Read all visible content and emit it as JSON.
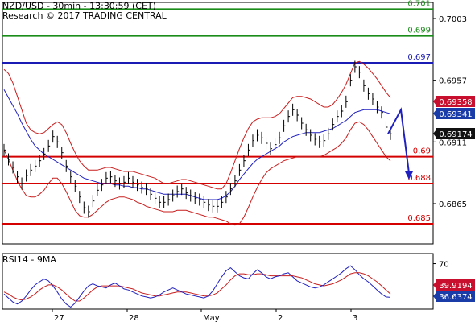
{
  "header": {
    "title": "NZD/USD - 30min - 13:30:59 (CET)",
    "credit": "Research © 2017 TRADING CENTRAL"
  },
  "colors": {
    "resistance": "#1a8c1a",
    "pivot": "#1a1ab4",
    "support": "#d40000",
    "ma_blue": "#2020c0",
    "band_red": "#c81e1e",
    "price_tag_red": "#c8102e",
    "price_tag_blue": "#1a3ca8",
    "price_tag_dark": "#111111"
  },
  "chart_data": [
    {
      "type": "line",
      "title": "NZD/USD - 30min",
      "ylim": [
        0.6835,
        0.7015
      ],
      "y_ticks": [
        "0.7003",
        "0.6957",
        "0.6911",
        "0.6865"
      ],
      "x_ticks": [
        "27",
        "28",
        "May",
        "2",
        "3"
      ],
      "levels": [
        {
          "label": "0.701",
          "value": 0.701,
          "kind": "resistance"
        },
        {
          "label": "0.699",
          "value": 0.699,
          "kind": "resistance"
        },
        {
          "label": "0.697",
          "value": 0.697,
          "kind": "pivot"
        },
        {
          "label": "0.69",
          "value": 0.69,
          "kind": "support"
        },
        {
          "label": "0.688",
          "value": 0.688,
          "kind": "support"
        },
        {
          "label": "0.685",
          "value": 0.685,
          "kind": "support"
        }
      ],
      "price_tags": [
        {
          "label": "0.69358",
          "value": 0.69358,
          "style": "red"
        },
        {
          "label": "0.69341",
          "value": 0.69341,
          "style": "blue"
        },
        {
          "label": "0.69174",
          "value": 0.69174,
          "style": "dark"
        }
      ],
      "price_series": [
        0.6905,
        0.6898,
        0.6892,
        0.6885,
        0.688,
        0.6886,
        0.689,
        0.6893,
        0.6897,
        0.6902,
        0.6908,
        0.6915,
        0.6911,
        0.6903,
        0.6893,
        0.6885,
        0.6878,
        0.687,
        0.6862,
        0.6859,
        0.6867,
        0.6875,
        0.6879,
        0.6884,
        0.6885,
        0.6882,
        0.688,
        0.6881,
        0.6884,
        0.6881,
        0.6879,
        0.6877,
        0.6876,
        0.6872,
        0.6869,
        0.6866,
        0.6866,
        0.6868,
        0.6871,
        0.6874,
        0.6876,
        0.6873,
        0.6871,
        0.6869,
        0.6868,
        0.6866,
        0.6864,
        0.6863,
        0.6863,
        0.6866,
        0.687,
        0.6876,
        0.6882,
        0.689,
        0.6897,
        0.6905,
        0.6912,
        0.6916,
        0.6914,
        0.691,
        0.6906,
        0.6909,
        0.6914,
        0.6923,
        0.693,
        0.6935,
        0.6931,
        0.6925,
        0.692,
        0.6916,
        0.6913,
        0.6911,
        0.6912,
        0.6917,
        0.6924,
        0.693,
        0.6934,
        0.6941,
        0.6957,
        0.6967,
        0.6963,
        0.6953,
        0.6947,
        0.6943,
        0.6937,
        0.6933,
        0.6922,
        0.6917
      ],
      "ma_blue": [
        0.695,
        0.6944,
        0.6938,
        0.6932,
        0.6925,
        0.6919,
        0.6913,
        0.6908,
        0.6905,
        0.6902,
        0.69,
        0.6898,
        0.6896,
        0.6894,
        0.6892,
        0.689,
        0.6888,
        0.6886,
        0.6884,
        0.6883,
        0.6882,
        0.6881,
        0.688,
        0.688,
        0.688,
        0.6879,
        0.6879,
        0.6878,
        0.6878,
        0.6877,
        0.6877,
        0.6876,
        0.6876,
        0.6875,
        0.6874,
        0.6873,
        0.6872,
        0.6872,
        0.6872,
        0.6872,
        0.6872,
        0.6872,
        0.6871,
        0.687,
        0.6869,
        0.6868,
        0.6868,
        0.6868,
        0.6868,
        0.6869,
        0.6871,
        0.6874,
        0.6878,
        0.6883,
        0.6887,
        0.6891,
        0.6895,
        0.6898,
        0.69,
        0.6902,
        0.6904,
        0.6906,
        0.6908,
        0.6911,
        0.6913,
        0.6915,
        0.6916,
        0.6917,
        0.6918,
        0.6918,
        0.6918,
        0.6918,
        0.6919,
        0.692,
        0.6921,
        0.6923,
        0.6925,
        0.6927,
        0.693,
        0.6933,
        0.6934,
        0.6935,
        0.6935,
        0.6935,
        0.6935,
        0.6934,
        0.6933,
        0.6932
      ],
      "band_upper": [
        0.6965,
        0.6962,
        0.6955,
        0.6945,
        0.6935,
        0.6925,
        0.692,
        0.6918,
        0.6917,
        0.6918,
        0.6921,
        0.6924,
        0.6926,
        0.6924,
        0.6918,
        0.691,
        0.6903,
        0.6897,
        0.6893,
        0.689,
        0.689,
        0.689,
        0.6891,
        0.6892,
        0.6892,
        0.6891,
        0.689,
        0.6889,
        0.6889,
        0.6889,
        0.6888,
        0.6887,
        0.6886,
        0.6885,
        0.6884,
        0.6882,
        0.688,
        0.688,
        0.6881,
        0.6882,
        0.6883,
        0.6883,
        0.6882,
        0.6881,
        0.688,
        0.6879,
        0.6878,
        0.6877,
        0.6876,
        0.6876,
        0.688,
        0.6888,
        0.6897,
        0.6906,
        0.6914,
        0.6921,
        0.6926,
        0.6928,
        0.6929,
        0.6929,
        0.6929,
        0.693,
        0.6932,
        0.6936,
        0.694,
        0.6944,
        0.6945,
        0.6945,
        0.6944,
        0.6943,
        0.6941,
        0.6939,
        0.6937,
        0.6937,
        0.6939,
        0.6943,
        0.6948,
        0.6954,
        0.6962,
        0.697,
        0.6971,
        0.6969,
        0.6966,
        0.6962,
        0.6958,
        0.6953,
        0.6948,
        0.6944
      ],
      "band_lower": [
        0.6905,
        0.6898,
        0.689,
        0.6882,
        0.6876,
        0.6871,
        0.687,
        0.687,
        0.6872,
        0.6875,
        0.688,
        0.6884,
        0.6884,
        0.688,
        0.6874,
        0.6867,
        0.686,
        0.6856,
        0.6855,
        0.6855,
        0.6857,
        0.686,
        0.6863,
        0.6866,
        0.6868,
        0.6869,
        0.687,
        0.687,
        0.6869,
        0.6868,
        0.6866,
        0.6865,
        0.6863,
        0.6862,
        0.6861,
        0.686,
        0.6859,
        0.6859,
        0.6859,
        0.686,
        0.686,
        0.686,
        0.6859,
        0.6858,
        0.6857,
        0.6856,
        0.6855,
        0.6855,
        0.6854,
        0.6853,
        0.6852,
        0.685,
        0.6849,
        0.685,
        0.6855,
        0.6862,
        0.687,
        0.6877,
        0.6883,
        0.6888,
        0.6891,
        0.6893,
        0.6895,
        0.6897,
        0.6898,
        0.6899,
        0.69,
        0.69,
        0.69,
        0.69,
        0.69,
        0.69,
        0.6901,
        0.6903,
        0.6905,
        0.6907,
        0.691,
        0.6914,
        0.692,
        0.6925,
        0.6926,
        0.6924,
        0.692,
        0.6915,
        0.691,
        0.6905,
        0.69,
        0.6897
      ],
      "forecast_arrow": {
        "from": 0.6935,
        "to": 0.6883
      }
    },
    {
      "type": "line",
      "title": "RSI14 - 9MA",
      "ylim": [
        25,
        80
      ],
      "y_ticks": [
        "70"
      ],
      "series": [
        {
          "name": "RSI14",
          "values": [
            40,
            36,
            32,
            30,
            33,
            38,
            44,
            49,
            52,
            55,
            53,
            48,
            42,
            35,
            30,
            27,
            31,
            37,
            43,
            48,
            50,
            48,
            47,
            46,
            49,
            51,
            48,
            45,
            44,
            42,
            40,
            38,
            37,
            36,
            37,
            39,
            42,
            44,
            46,
            44,
            42,
            40,
            39,
            38,
            37,
            36,
            38,
            43,
            50,
            57,
            63,
            66,
            62,
            58,
            56,
            55,
            60,
            64,
            61,
            57,
            55,
            57,
            58,
            60,
            61,
            57,
            53,
            51,
            49,
            47,
            46,
            47,
            49,
            52,
            55,
            58,
            61,
            65,
            68,
            64,
            59,
            55,
            52,
            48,
            44,
            40,
            37,
            36.6374
          ]
        },
        {
          "name": "9MA",
          "values": [
            42,
            40,
            37,
            35,
            34,
            35,
            37,
            40,
            44,
            47,
            49,
            49,
            47,
            44,
            40,
            36,
            33,
            33,
            36,
            40,
            44,
            47,
            48,
            48,
            48,
            48,
            48,
            47,
            46,
            45,
            43,
            41,
            40,
            39,
            38,
            38,
            39,
            40,
            41,
            42,
            42,
            42,
            41,
            40,
            39,
            38,
            38,
            39,
            41,
            45,
            49,
            54,
            58,
            60,
            60,
            59,
            59,
            60,
            60,
            59,
            58,
            58,
            58,
            58,
            58,
            58,
            57,
            56,
            54,
            52,
            50,
            49,
            48,
            49,
            50,
            52,
            54,
            57,
            60,
            61,
            61,
            60,
            58,
            55,
            52,
            48,
            44,
            39.9194
          ]
        }
      ],
      "price_tags": [
        {
          "label": "39.9194",
          "value": 39.9194,
          "style": "red"
        },
        {
          "label": "36.6374",
          "value": 36.6374,
          "style": "blue"
        }
      ]
    }
  ]
}
